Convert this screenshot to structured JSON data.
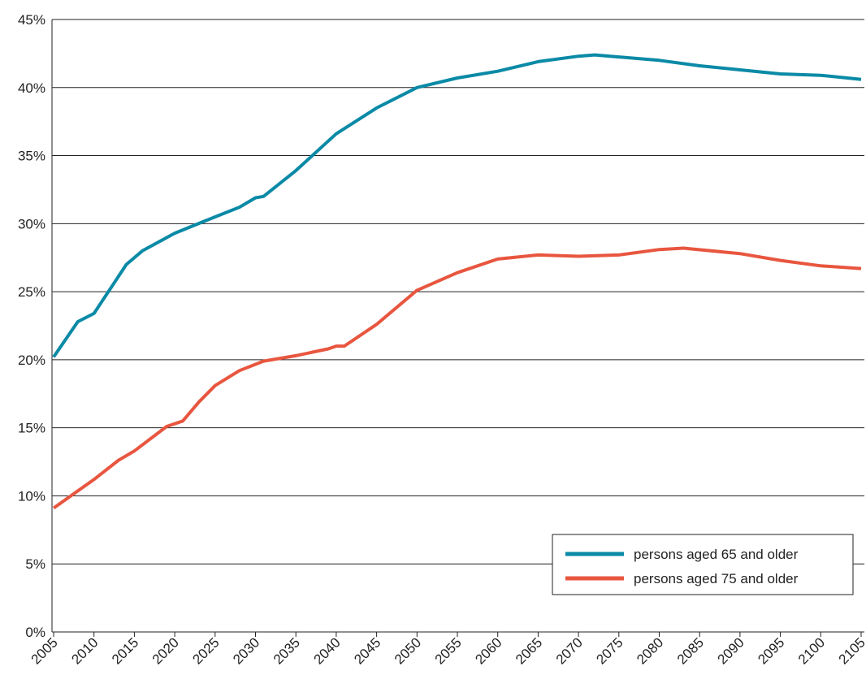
{
  "chart_data": {
    "type": "line",
    "x": [],
    "xlim": [
      2005,
      2105
    ],
    "xticks": [
      2005,
      2010,
      2015,
      2020,
      2025,
      2030,
      2035,
      2040,
      2045,
      2050,
      2055,
      2060,
      2065,
      2070,
      2075,
      2080,
      2085,
      2090,
      2095,
      2100,
      2105
    ],
    "ylim": [
      0,
      45
    ],
    "yticks": [
      {
        "value": 0,
        "label": "0%"
      },
      {
        "value": 5,
        "label": "5%"
      },
      {
        "value": 10,
        "label": "10%"
      },
      {
        "value": 15,
        "label": "15%"
      },
      {
        "value": 20,
        "label": "20%"
      },
      {
        "value": 25,
        "label": "25%"
      },
      {
        "value": 30,
        "label": "30%"
      },
      {
        "value": 35,
        "label": "35%"
      },
      {
        "value": 40,
        "label": "40%"
      },
      {
        "value": 45,
        "label": "45%"
      }
    ],
    "grid": true,
    "legend": "lower-right",
    "series": [
      {
        "name": "persons aged 65 and older",
        "color": "#0a8aa6",
        "x": [
          2005,
          2008,
          2010,
          2012,
          2014,
          2016,
          2020,
          2025,
          2028,
          2030,
          2031,
          2035,
          2040,
          2045,
          2050,
          2055,
          2060,
          2065,
          2070,
          2072,
          2080,
          2085,
          2090,
          2095,
          2100,
          2105
        ],
        "values": [
          20.2,
          22.8,
          23.4,
          25.2,
          27.0,
          28.0,
          29.3,
          30.5,
          31.2,
          31.9,
          32.0,
          33.9,
          36.6,
          38.5,
          40.0,
          40.7,
          41.2,
          41.9,
          42.3,
          42.4,
          42.0,
          41.6,
          41.3,
          41.0,
          40.9,
          40.6
        ]
      },
      {
        "name": "persons aged 75 and older",
        "color": "#e8563f",
        "x": [
          2005,
          2010,
          2013,
          2015,
          2019,
          2021,
          2023,
          2025,
          2028,
          2031,
          2035,
          2039,
          2040,
          2041,
          2045,
          2050,
          2055,
          2060,
          2065,
          2070,
          2075,
          2080,
          2083,
          2090,
          2095,
          2100,
          2105
        ],
        "values": [
          9.1,
          11.2,
          12.6,
          13.3,
          15.1,
          15.5,
          16.9,
          18.1,
          19.2,
          19.9,
          20.3,
          20.8,
          21.0,
          21.0,
          22.6,
          25.1,
          26.4,
          27.4,
          27.7,
          27.6,
          27.7,
          28.1,
          28.2,
          27.8,
          27.3,
          26.9,
          26.7
        ]
      }
    ]
  }
}
